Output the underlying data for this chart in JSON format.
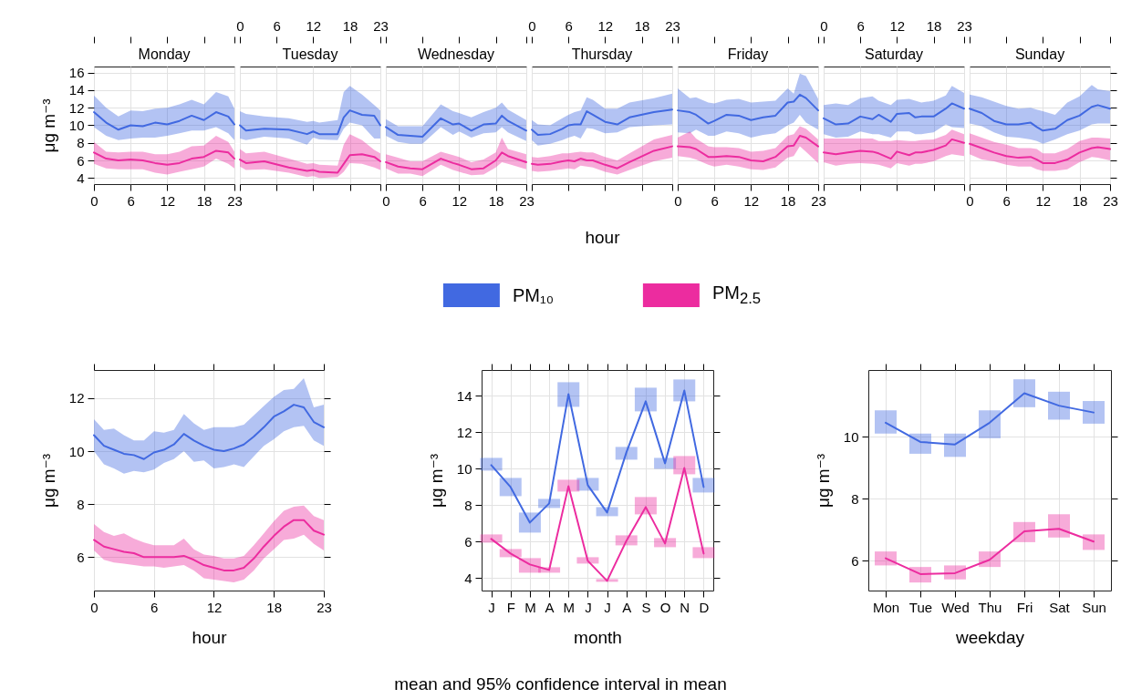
{
  "chart_data": [
    {
      "type": "line",
      "title": "Monday",
      "ylabel": "μg m⁻³",
      "x": [
        0,
        2,
        4,
        6,
        8,
        10,
        12,
        14,
        16,
        18,
        20,
        22,
        23
      ],
      "series": [
        {
          "name": "PM₁₀",
          "color": "#4169e1",
          "values": [
            11.5,
            10.3,
            9.5,
            10.0,
            9.9,
            10.3,
            10.1,
            10.5,
            11.1,
            10.6,
            11.5,
            11.0,
            10.1
          ],
          "lower": [
            9.8,
            8.8,
            8.3,
            8.5,
            8.6,
            8.6,
            8.8,
            9.1,
            9.4,
            9.4,
            9.8,
            9.1,
            8.3
          ],
          "upper": [
            13.4,
            12.0,
            11.0,
            11.7,
            11.6,
            11.9,
            12.0,
            12.4,
            12.9,
            12.4,
            13.8,
            13.3,
            11.9
          ]
        },
        {
          "name": "PM$_{2.5}$",
          "color": "#ec2c9f",
          "values": [
            6.9,
            6.2,
            6.0,
            6.1,
            6.0,
            5.7,
            5.5,
            5.7,
            6.2,
            6.4,
            7.1,
            6.9,
            6.2
          ],
          "lower": [
            5.6,
            5.1,
            5.0,
            5.0,
            5.0,
            4.6,
            4.4,
            4.7,
            5.0,
            5.3,
            6.2,
            5.6,
            5.1
          ],
          "upper": [
            8.1,
            7.0,
            6.9,
            7.0,
            7.0,
            6.7,
            6.7,
            7.0,
            7.6,
            7.7,
            8.8,
            8.1,
            7.0
          ]
        }
      ],
      "xlim": [
        0,
        23
      ],
      "xticks": [
        0,
        6,
        12,
        18,
        23
      ],
      "ylim": [
        3.3,
        16.7
      ],
      "yticks": [
        4,
        6,
        8,
        10,
        12,
        14,
        16
      ],
      "grid": true,
      "legend": "bottom"
    },
    {
      "type": "line",
      "title": "Tuesday",
      "x": [
        0,
        1,
        4,
        8,
        11,
        12,
        13,
        16,
        17,
        18,
        20,
        22,
        23
      ],
      "series": [
        {
          "color": "#4169e1",
          "values": [
            10.0,
            9.4,
            9.6,
            9.5,
            9.0,
            9.3,
            9.0,
            9.0,
            10.9,
            11.7,
            11.2,
            11.1,
            10.0
          ],
          "lower": [
            8.5,
            8.3,
            8.7,
            8.5,
            7.8,
            8.6,
            8.4,
            8.3,
            9.6,
            10.3,
            10.0,
            8.5,
            8.5
          ],
          "upper": [
            11.6,
            11.3,
            11.0,
            10.8,
            10.4,
            10.5,
            10.3,
            10.6,
            13.8,
            14.5,
            13.5,
            12.3,
            11.7
          ]
        },
        {
          "color": "#ec2c9f",
          "values": [
            6.1,
            5.7,
            5.9,
            5.2,
            4.8,
            4.9,
            4.7,
            4.6,
            5.6,
            6.6,
            6.7,
            6.4,
            5.9
          ],
          "lower": [
            5.3,
            4.9,
            5.0,
            4.6,
            4.1,
            4.2,
            4.0,
            4.1,
            4.7,
            5.7,
            5.6,
            5.2,
            4.9
          ],
          "upper": [
            7.3,
            6.8,
            7.0,
            6.2,
            5.6,
            5.7,
            5.5,
            5.4,
            7.8,
            9.0,
            8.3,
            7.2,
            6.8
          ]
        }
      ],
      "xlim": [
        0,
        23
      ],
      "xticks": [
        0,
        6,
        12,
        18,
        23
      ],
      "x2lim": [
        0,
        23
      ],
      "x2ticks": [
        0,
        6,
        12,
        18,
        23
      ],
      "ylim": [
        3.3,
        16.7
      ],
      "yticks": [
        4,
        6,
        8,
        10,
        12,
        14,
        16
      ],
      "grid": true,
      "tick_labels": false
    },
    {
      "type": "line",
      "title": "Wednesday",
      "x": [
        0,
        2,
        4,
        6,
        9,
        11,
        12,
        14,
        16,
        18,
        19,
        20,
        23
      ],
      "series": [
        {
          "color": "#4169e1",
          "values": [
            9.8,
            8.9,
            8.8,
            8.7,
            10.8,
            10.1,
            10.2,
            9.4,
            10.1,
            10.2,
            11.1,
            10.5,
            9.4
          ],
          "lower": [
            8.8,
            8.1,
            7.9,
            7.9,
            9.8,
            8.9,
            9.3,
            8.6,
            9.1,
            9.2,
            9.8,
            9.2,
            8.2
          ],
          "upper": [
            10.7,
            9.9,
            9.9,
            9.9,
            12.4,
            11.6,
            11.4,
            10.9,
            11.5,
            12.0,
            12.6,
            11.8,
            10.6
          ]
        },
        {
          "color": "#ec2c9f",
          "values": [
            5.8,
            5.3,
            5.1,
            5.0,
            6.2,
            5.7,
            5.5,
            5.0,
            5.1,
            6.0,
            6.9,
            6.5,
            5.8
          ],
          "lower": [
            5.1,
            4.5,
            4.5,
            4.2,
            5.5,
            4.9,
            4.7,
            4.3,
            4.4,
            5.2,
            5.8,
            5.6,
            5.0
          ],
          "upper": [
            6.7,
            6.3,
            5.9,
            5.9,
            7.0,
            6.6,
            6.4,
            5.8,
            6.1,
            6.9,
            8.6,
            7.3,
            6.7
          ]
        }
      ],
      "xlim": [
        0,
        23
      ],
      "xticks": [
        0,
        6,
        12,
        18,
        23
      ],
      "ylim": [
        3.3,
        16.7
      ],
      "yticks": [
        4,
        6,
        8,
        10,
        12,
        14,
        16
      ],
      "grid": true,
      "tick_labels": "x"
    },
    {
      "type": "line",
      "title": "Thursday",
      "xlabel": "hour",
      "x": [
        0,
        1,
        3,
        5,
        6,
        7,
        8,
        9,
        10,
        12,
        14,
        16,
        20,
        23
      ],
      "series": [
        {
          "color": "#4169e1",
          "values": [
            9.5,
            8.9,
            9.0,
            9.6,
            10.0,
            10.1,
            10.1,
            11.6,
            11.2,
            10.4,
            10.1,
            10.9,
            11.5,
            11.8
          ],
          "lower": [
            8.3,
            7.7,
            7.9,
            8.3,
            8.6,
            8.8,
            8.5,
            9.7,
            9.6,
            9.1,
            9.2,
            9.8,
            10.0,
            10.1
          ],
          "upper": [
            10.6,
            10.1,
            10.0,
            10.8,
            11.2,
            11.5,
            11.7,
            13.2,
            12.9,
            11.9,
            11.9,
            12.6,
            13.1,
            13.6
          ]
        },
        {
          "color": "#ec2c9f",
          "values": [
            5.6,
            5.5,
            5.6,
            5.9,
            6.0,
            5.9,
            6.2,
            6.0,
            6.0,
            5.5,
            5.1,
            5.8,
            7.1,
            7.6
          ],
          "lower": [
            4.8,
            4.7,
            4.8,
            5.0,
            5.1,
            5.0,
            5.4,
            5.3,
            5.2,
            4.7,
            4.4,
            4.9,
            5.9,
            6.3
          ],
          "upper": [
            6.4,
            6.3,
            6.5,
            6.8,
            6.8,
            6.9,
            7.0,
            6.9,
            6.9,
            6.4,
            6.0,
            6.8,
            8.4,
            8.9
          ]
        }
      ],
      "xlim": [
        0,
        23
      ],
      "xticks": [
        0,
        6,
        12,
        18,
        23
      ],
      "x2lim": [
        0,
        23
      ],
      "x2ticks": [
        0,
        6,
        12,
        18,
        23
      ],
      "ylim": [
        3.3,
        16.7
      ],
      "yticks": [
        4,
        6,
        8,
        10,
        12,
        14,
        16
      ],
      "grid": true,
      "tick_labels": false
    },
    {
      "type": "line",
      "title": "Friday",
      "x": [
        0,
        2,
        3,
        5,
        6,
        8,
        10,
        12,
        14,
        16,
        18,
        19,
        20,
        21,
        23
      ],
      "series": [
        {
          "color": "#4169e1",
          "values": [
            11.7,
            11.5,
            11.2,
            10.2,
            10.5,
            11.2,
            11.1,
            10.6,
            10.9,
            11.1,
            12.6,
            12.7,
            13.5,
            13.1,
            11.7
          ],
          "lower": [
            9.2,
            9.1,
            9.5,
            8.8,
            8.8,
            9.3,
            9.1,
            8.6,
            8.9,
            9.1,
            10.0,
            10.3,
            11.2,
            10.3,
            9.5
          ],
          "upper": [
            14.2,
            13.1,
            13.2,
            12.6,
            12.5,
            12.9,
            13.0,
            12.6,
            12.7,
            12.8,
            14.2,
            13.6,
            15.9,
            15.6,
            13.0
          ]
        },
        {
          "color": "#ec2c9f",
          "values": [
            7.6,
            7.5,
            7.3,
            6.4,
            6.4,
            6.5,
            6.4,
            6.0,
            5.9,
            6.4,
            7.6,
            7.7,
            8.8,
            8.6,
            7.6
          ],
          "lower": [
            6.5,
            6.3,
            6.1,
            5.5,
            5.3,
            5.5,
            5.3,
            5.0,
            4.9,
            5.2,
            6.3,
            6.5,
            7.6,
            7.0,
            5.7
          ],
          "upper": [
            8.6,
            9.3,
            8.5,
            7.6,
            7.5,
            7.5,
            7.4,
            7.0,
            7.1,
            7.4,
            8.8,
            9.0,
            9.9,
            9.6,
            8.4
          ]
        }
      ],
      "xlim": [
        0,
        23
      ],
      "xticks": [
        0,
        6,
        12,
        18,
        23
      ],
      "ylim": [
        3.3,
        16.7
      ],
      "yticks": [
        4,
        6,
        8,
        10,
        12,
        14,
        16
      ],
      "grid": true,
      "tick_labels": "x"
    },
    {
      "type": "line",
      "title": "Saturday",
      "x": [
        0,
        2,
        4,
        6,
        8,
        9,
        11,
        12,
        14,
        15,
        16,
        18,
        20,
        21,
        23
      ],
      "series": [
        {
          "color": "#4169e1",
          "values": [
            10.8,
            10.1,
            10.2,
            11.0,
            10.7,
            11.2,
            10.4,
            11.3,
            11.4,
            10.9,
            11.0,
            11.0,
            11.9,
            12.5,
            11.9
          ],
          "lower": [
            9.0,
            8.6,
            8.7,
            9.3,
            9.0,
            9.0,
            8.6,
            9.3,
            9.3,
            9.0,
            9.0,
            9.2,
            10.1,
            9.8,
            9.7
          ],
          "upper": [
            12.3,
            12.5,
            12.3,
            13.1,
            13.3,
            12.8,
            12.3,
            12.9,
            13.0,
            12.8,
            12.6,
            12.8,
            13.4,
            14.5,
            13.7
          ]
        },
        {
          "color": "#ec2c9f",
          "values": [
            6.9,
            6.7,
            6.9,
            7.1,
            7.0,
            6.8,
            6.2,
            7.0,
            6.6,
            6.9,
            6.9,
            7.2,
            7.7,
            8.4,
            8.0
          ],
          "lower": [
            5.8,
            5.4,
            5.6,
            5.7,
            5.6,
            5.5,
            5.1,
            5.7,
            5.4,
            5.6,
            5.6,
            5.9,
            6.5,
            6.7,
            6.5
          ],
          "upper": [
            8.5,
            8.5,
            8.5,
            8.5,
            8.5,
            8.2,
            8.2,
            8.3,
            8.2,
            8.2,
            8.3,
            8.4,
            8.9,
            9.5,
            9.0
          ]
        }
      ],
      "xlim": [
        0,
        23
      ],
      "xticks": [
        0,
        6,
        12,
        18,
        23
      ],
      "x2lim": [
        0,
        23
      ],
      "x2ticks": [
        0,
        6,
        12,
        18,
        23
      ],
      "ylim": [
        3.3,
        16.7
      ],
      "yticks": [
        4,
        6,
        8,
        10,
        12,
        14,
        16
      ],
      "grid": true,
      "tick_labels": false
    },
    {
      "type": "line",
      "title": "Sunday",
      "x": [
        0,
        2,
        4,
        6,
        8,
        10,
        11,
        12,
        14,
        16,
        18,
        20,
        21,
        23
      ],
      "series": [
        {
          "color": "#4169e1",
          "values": [
            11.9,
            11.4,
            10.5,
            10.1,
            10.1,
            10.3,
            9.8,
            9.4,
            9.6,
            10.6,
            11.1,
            12.1,
            12.3,
            11.9
          ],
          "lower": [
            10.2,
            9.9,
            9.2,
            8.7,
            8.6,
            8.4,
            8.2,
            7.9,
            8.4,
            9.0,
            9.4,
            10.1,
            10.2,
            10.2
          ],
          "upper": [
            13.5,
            13.2,
            12.7,
            12.2,
            11.9,
            12.0,
            11.8,
            11.6,
            11.2,
            12.6,
            13.3,
            14.6,
            14.1,
            13.9
          ]
        },
        {
          "color": "#ec2c9f",
          "values": [
            7.9,
            7.4,
            6.9,
            6.5,
            6.3,
            6.4,
            6.1,
            5.7,
            5.7,
            6.1,
            6.9,
            7.4,
            7.5,
            7.3
          ],
          "lower": [
            6.7,
            6.1,
            5.9,
            5.5,
            5.3,
            5.3,
            5.0,
            4.8,
            4.8,
            5.0,
            5.8,
            6.4,
            6.3,
            6.0
          ],
          "upper": [
            9.1,
            8.6,
            8.1,
            7.8,
            7.4,
            7.4,
            7.3,
            6.8,
            6.8,
            7.3,
            8.2,
            8.6,
            8.6,
            8.5
          ]
        }
      ],
      "xlim": [
        0,
        23
      ],
      "xticks": [
        0,
        6,
        12,
        18,
        23
      ],
      "ylim": [
        3.3,
        16.7
      ],
      "yticks": [
        4,
        6,
        8,
        10,
        12,
        14,
        16
      ],
      "grid": true,
      "tick_labels": "x"
    },
    {
      "type": "line",
      "xlabel": "hour",
      "ylabel": "μg m⁻³",
      "x": [
        0,
        1,
        2,
        3,
        4,
        5,
        6,
        7,
        8,
        9,
        10,
        11,
        12,
        13,
        14,
        15,
        16,
        17,
        18,
        19,
        20,
        21,
        22,
        23
      ],
      "series": [
        {
          "color": "#4169e1",
          "values": [
            10.6,
            10.2,
            10.05,
            9.9,
            9.85,
            9.7,
            9.95,
            10.05,
            10.25,
            10.65,
            10.4,
            10.2,
            10.05,
            10.0,
            10.1,
            10.25,
            10.55,
            10.9,
            11.3,
            11.5,
            11.75,
            11.65,
            11.1,
            10.9
          ],
          "lower": [
            10.0,
            9.5,
            9.35,
            9.15,
            9.25,
            9.2,
            9.3,
            9.55,
            9.7,
            10.0,
            9.6,
            9.65,
            9.35,
            9.4,
            9.5,
            9.4,
            9.8,
            10.2,
            10.45,
            10.75,
            10.9,
            10.95,
            10.4,
            10.2
          ],
          "upper": [
            11.2,
            10.8,
            10.85,
            10.6,
            10.4,
            10.4,
            10.75,
            10.7,
            10.8,
            11.4,
            11.05,
            10.8,
            10.9,
            10.9,
            10.9,
            11.0,
            11.35,
            11.7,
            12.05,
            12.3,
            12.35,
            12.75,
            11.65,
            11.75
          ]
        },
        {
          "color": "#ec2c9f",
          "values": [
            6.65,
            6.4,
            6.3,
            6.2,
            6.15,
            6.0,
            6.0,
            6.0,
            6.0,
            6.05,
            5.9,
            5.7,
            5.6,
            5.5,
            5.5,
            5.6,
            5.95,
            6.4,
            6.8,
            7.15,
            7.4,
            7.4,
            7.0,
            6.85
          ],
          "lower": [
            6.25,
            5.9,
            5.8,
            5.75,
            5.7,
            5.65,
            5.65,
            5.6,
            5.65,
            5.7,
            5.5,
            5.2,
            5.15,
            5.1,
            5.05,
            5.15,
            5.5,
            5.95,
            6.3,
            6.65,
            6.7,
            6.85,
            6.5,
            6.25
          ],
          "upper": [
            7.25,
            6.95,
            6.8,
            6.9,
            6.7,
            6.55,
            6.45,
            6.45,
            6.45,
            6.7,
            6.3,
            6.1,
            6.05,
            5.95,
            5.95,
            6.05,
            6.45,
            6.9,
            7.35,
            7.75,
            7.9,
            7.95,
            7.55,
            7.4
          ]
        }
      ],
      "xlim": [
        0,
        23
      ],
      "xticks": [
        0,
        6,
        12,
        18,
        23
      ],
      "ylim": [
        4.74,
        13.06
      ],
      "yticks": [
        6,
        8,
        10,
        12
      ],
      "grid": true
    },
    {
      "type": "line",
      "xlabel": "month",
      "ylabel": "μg m⁻³",
      "categories": [
        "J",
        "F",
        "M",
        "A",
        "M",
        "J",
        "J",
        "A",
        "S",
        "O",
        "N",
        "D"
      ],
      "series": [
        {
          "color": "#4169e1",
          "values": [
            10.2,
            9.0,
            7.05,
            8.1,
            14.1,
            9.1,
            7.6,
            10.9,
            13.7,
            10.3,
            14.3,
            9.0
          ],
          "errors": [
            [
              9.9,
              10.6
            ],
            [
              8.5,
              9.5
            ],
            [
              6.5,
              7.6
            ],
            [
              7.85,
              8.35
            ],
            [
              13.4,
              14.75
            ],
            [
              8.8,
              9.5
            ],
            [
              7.4,
              7.9
            ],
            [
              10.5,
              11.2
            ],
            [
              13.15,
              14.45
            ],
            [
              10.0,
              10.6
            ],
            [
              13.7,
              14.9
            ],
            [
              8.7,
              9.5
            ]
          ]
        },
        {
          "color": "#ec2c9f",
          "values": [
            6.15,
            5.35,
            4.75,
            4.45,
            9.05,
            4.95,
            3.85,
            6.05,
            7.9,
            5.9,
            10.05,
            5.35
          ],
          "errors": [
            [
              5.95,
              6.4
            ],
            [
              5.15,
              5.6
            ],
            [
              4.3,
              5.1
            ],
            [
              4.3,
              4.6
            ],
            [
              8.75,
              9.4
            ],
            [
              4.8,
              5.15
            ],
            [
              3.8,
              3.95
            ],
            [
              5.8,
              6.35
            ],
            [
              7.5,
              8.45
            ],
            [
              5.7,
              6.2
            ],
            [
              9.7,
              10.7
            ],
            [
              5.1,
              5.7
            ]
          ]
        }
      ],
      "ylim": [
        3.32,
        15.42
      ],
      "yticks": [
        4,
        6,
        8,
        10,
        12,
        14
      ],
      "grid": true,
      "annotations": [
        "mean and 95% confidence interval in mean"
      ]
    },
    {
      "type": "line",
      "xlabel": "weekday",
      "ylabel": "μg m⁻³",
      "categories": [
        "Mon",
        "Tue",
        "Wed",
        "Thu",
        "Fri",
        "Sat",
        "Sun"
      ],
      "series": [
        {
          "color": "#4169e1",
          "values": [
            10.45,
            9.83,
            9.75,
            10.45,
            11.4,
            11.0,
            10.78
          ],
          "errors": [
            [
              10.1,
              10.85
            ],
            [
              9.45,
              10.1
            ],
            [
              9.35,
              10.1
            ],
            [
              9.95,
              10.85
            ],
            [
              10.95,
              11.85
            ],
            [
              10.55,
              11.45
            ],
            [
              10.42,
              11.15
            ]
          ]
        },
        {
          "color": "#ec2c9f",
          "values": [
            6.08,
            5.57,
            5.6,
            6.03,
            6.95,
            7.03,
            6.62
          ],
          "errors": [
            [
              5.85,
              6.3
            ],
            [
              5.3,
              5.8
            ],
            [
              5.4,
              5.85
            ],
            [
              5.8,
              6.3
            ],
            [
              6.6,
              7.25
            ],
            [
              6.75,
              7.5
            ],
            [
              6.35,
              6.85
            ]
          ]
        }
      ],
      "ylim": [
        5.04,
        12.15
      ],
      "yticks": [
        6,
        8,
        10
      ],
      "grid": true
    }
  ]
}
